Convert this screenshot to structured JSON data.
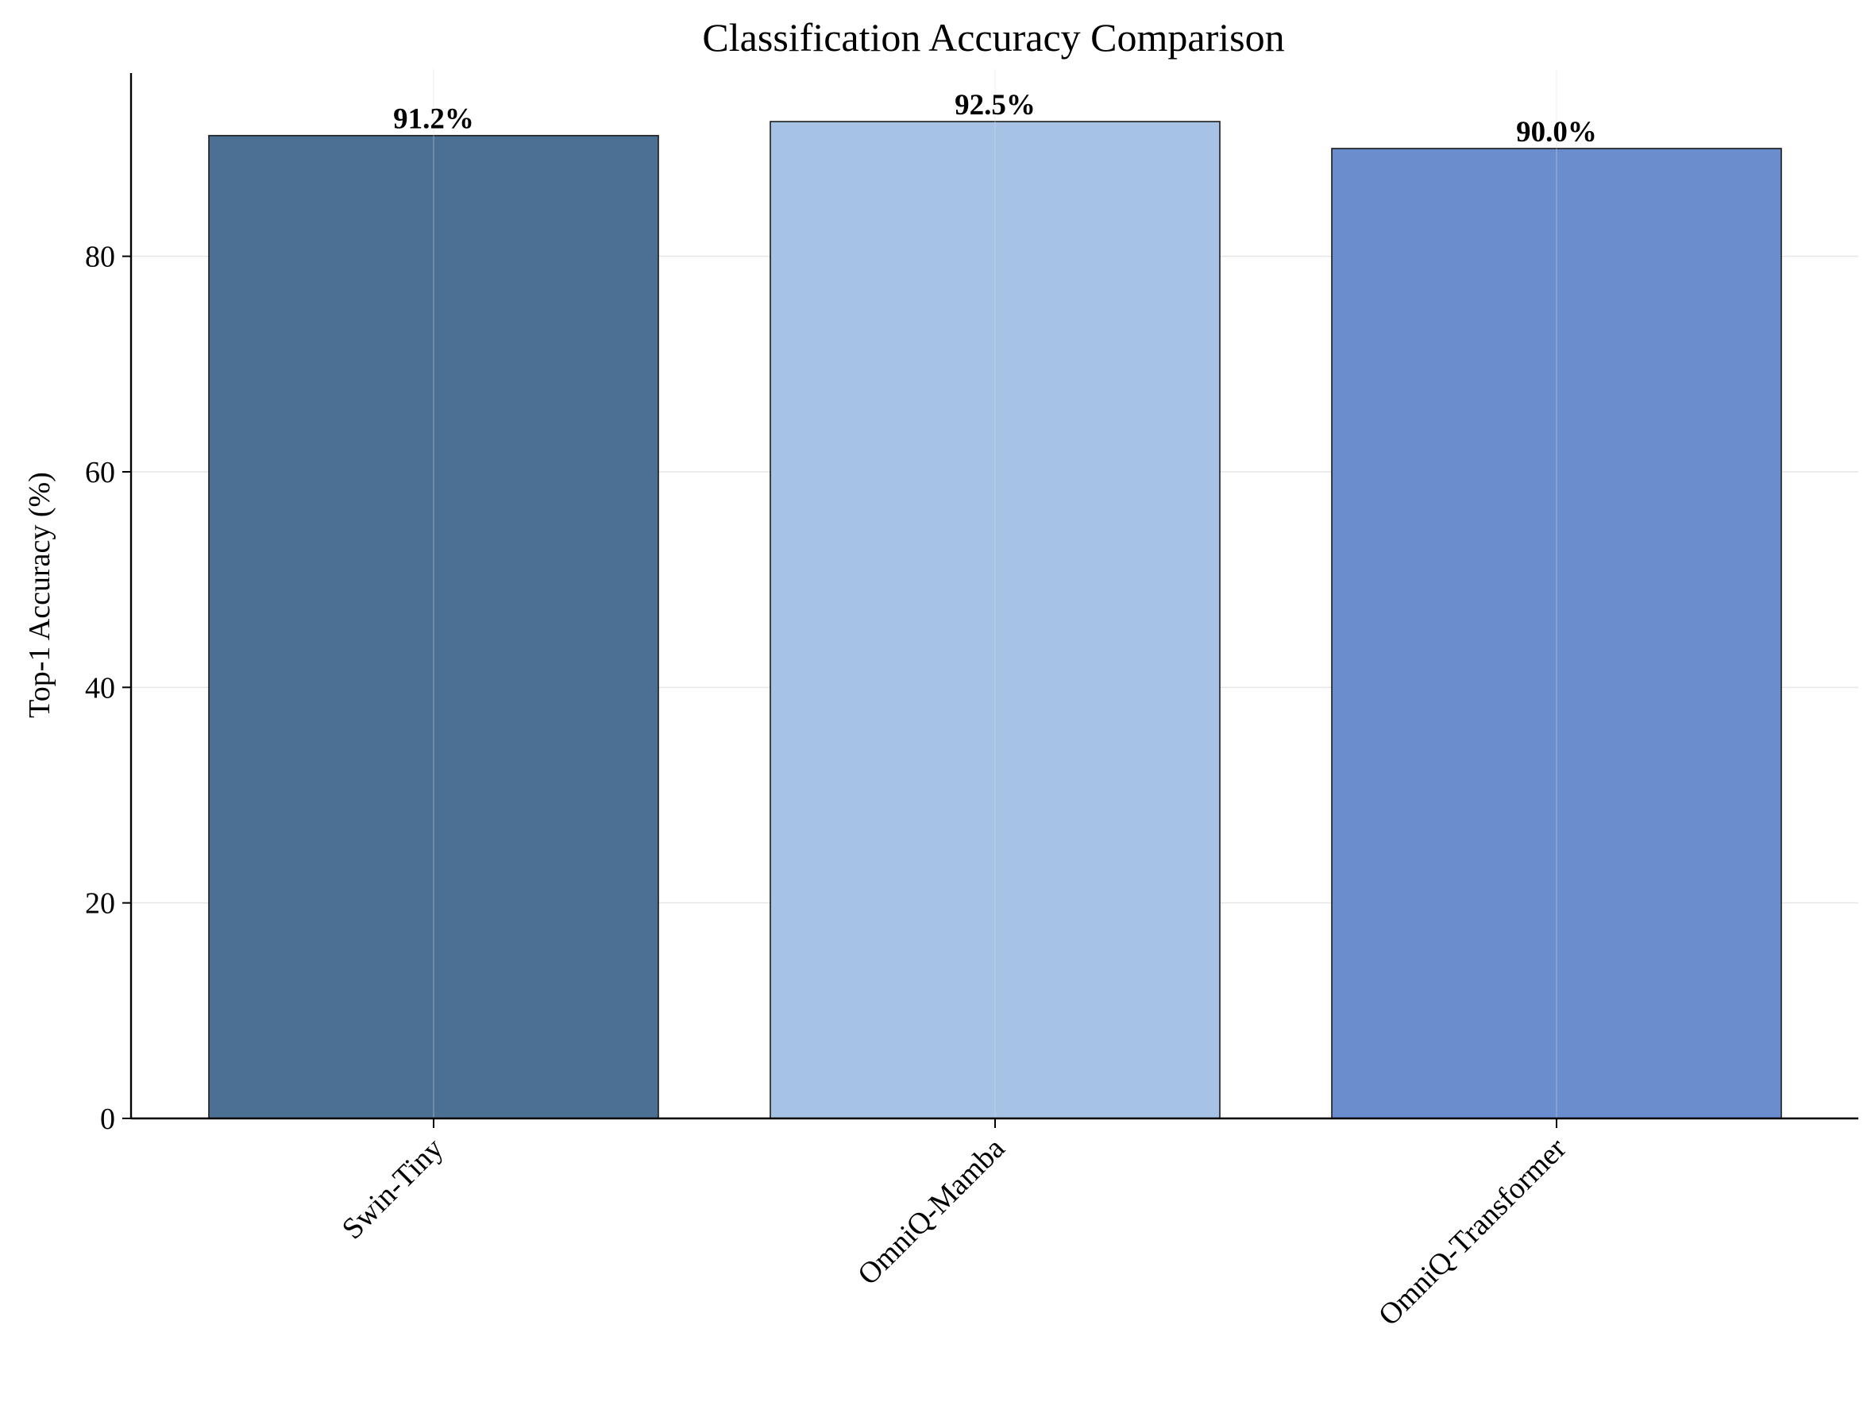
{
  "chart_data": {
    "type": "bar",
    "title": "Classification Accuracy Comparison",
    "xlabel": "",
    "ylabel": "Top-1 Accuracy (%)",
    "categories": [
      "Swin-Tiny",
      "OmniQ-Mamba",
      "OmniQ-Transformer"
    ],
    "values": [
      91.2,
      92.5,
      90.0
    ],
    "data_labels": [
      "91.2%",
      "92.5%",
      "90.0%"
    ],
    "bar_colors": [
      "#4c7093",
      "#a6c3e6",
      "#698dcd"
    ],
    "edge_color": "#1a1a1a",
    "ylim": [
      0,
      97
    ],
    "yticks": [
      0,
      20,
      40,
      60,
      80
    ],
    "grid": true,
    "grid_color": "#e6e6e6",
    "xtick_rotation_deg": -45
  }
}
